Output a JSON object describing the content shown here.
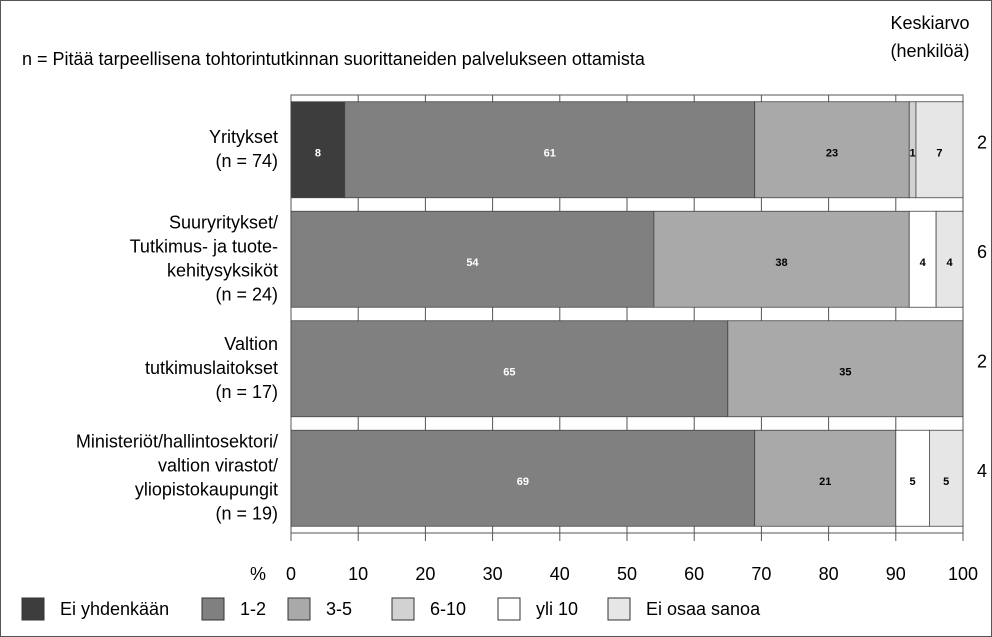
{
  "chart_data": {
    "type": "stacked_barh",
    "subtitle": "n = Pitää tarpeellisena tohtorintutkinnan suorittaneiden palvelukseen ottamista",
    "mean_title": [
      "Keskiarvo",
      "(henkilöä)"
    ],
    "categories": [
      "Yritykset\n(n = 74)",
      "Suuryritykset/\nTutkimus- ja tuote-\nkehitysyksiköt\n(n = 24)",
      "Valtion\ntutkimuslaitokset\n(n = 17)",
      "Ministeriöt/hallintosektori/\nvaltion virastot/\nyliopistokaupungit\n(n = 19)"
    ],
    "series": [
      {
        "name": "Ei yhdenkään",
        "color": "#3d3d3d",
        "label_color": "#ffffff",
        "values": [
          8,
          null,
          null,
          null
        ]
      },
      {
        "name": "1-2",
        "color": "#808080",
        "label_color": "#ffffff",
        "values": [
          61,
          54,
          65,
          69
        ]
      },
      {
        "name": "3-5",
        "color": "#a9a9a9",
        "label_color": "#000000",
        "values": [
          23,
          38,
          35,
          21
        ]
      },
      {
        "name": "6-10",
        "color": "#d2d2d2",
        "label_color": "#000000",
        "values": [
          1,
          null,
          null,
          null
        ]
      },
      {
        "name": "yli 10",
        "color": "#ffffff",
        "label_color": "#000000",
        "values": [
          null,
          4,
          null,
          5
        ]
      },
      {
        "name": "Ei osaa sanoa",
        "color": "#e6e6e6",
        "label_color": "#000000",
        "values": [
          7,
          4,
          null,
          5
        ]
      }
    ],
    "means": [
      2,
      6,
      2,
      4
    ],
    "xlabel": "%",
    "xlim": [
      0,
      100
    ],
    "xticks": [
      0,
      10,
      20,
      30,
      40,
      50,
      60,
      70,
      80,
      90,
      100
    ],
    "grid": true
  }
}
